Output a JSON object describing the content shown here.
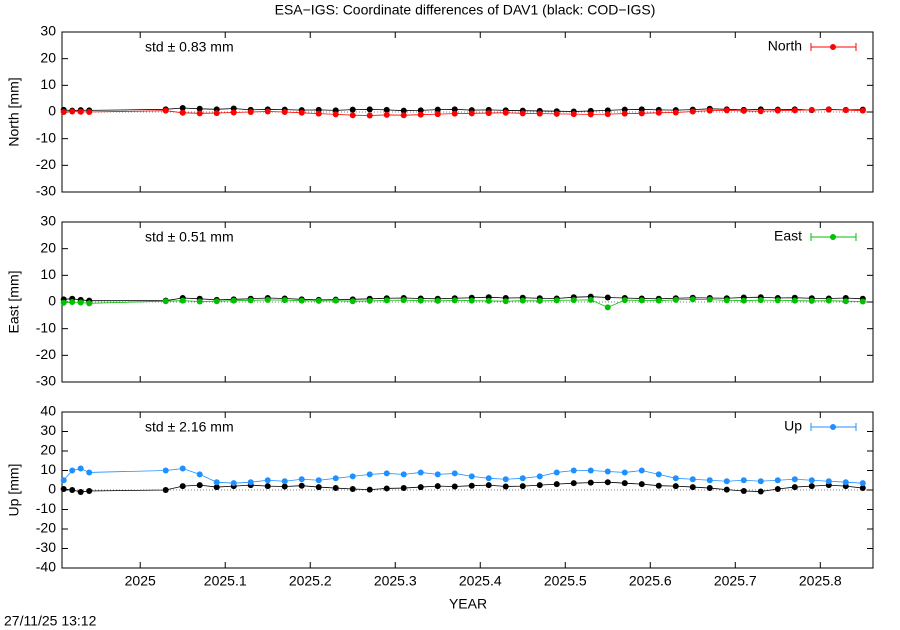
{
  "title": "ESA−IGS: Coordinate differences of DAV1 (black: COD−IGS)",
  "timestamp": "27/11/25 13:12",
  "xlabel": "YEAR",
  "chart_data": [
    {
      "type": "line",
      "ylabel": "North [mm]",
      "annotation": "std ± 0.83 mm",
      "xlim": [
        2024.908,
        2025.862
      ],
      "xticks": [
        2025,
        2025.1,
        2025.2,
        2025.3,
        2025.4,
        2025.5,
        2025.6,
        2025.7,
        2025.8
      ],
      "ylim": [
        -30,
        30
      ],
      "yticks": [
        -30,
        -20,
        -10,
        0,
        10,
        20,
        30
      ],
      "x": [
        2024.91,
        2024.92,
        2024.93,
        2024.94,
        2025.03,
        2025.05,
        2025.07,
        2025.09,
        2025.11,
        2025.13,
        2025.15,
        2025.17,
        2025.19,
        2025.21,
        2025.23,
        2025.25,
        2025.27,
        2025.29,
        2025.31,
        2025.33,
        2025.35,
        2025.37,
        2025.39,
        2025.41,
        2025.43,
        2025.45,
        2025.47,
        2025.49,
        2025.51,
        2025.53,
        2025.55,
        2025.57,
        2025.59,
        2025.61,
        2025.63,
        2025.65,
        2025.67,
        2025.69,
        2025.71,
        2025.73,
        2025.75,
        2025.77,
        2025.79,
        2025.81,
        2025.83,
        2025.85
      ],
      "series": [
        {
          "color": "#000000",
          "values": [
            0.8,
            0.5,
            0.7,
            0.6,
            1,
            1.5,
            1.2,
            1,
            1.3,
            0.8,
            1,
            0.9,
            0.7,
            0.8,
            0.6,
            0.9,
            1,
            0.8,
            0.5,
            0.6,
            0.9,
            1,
            0.7,
            0.8,
            0.6,
            0.5,
            0.4,
            0.3,
            0.2,
            0.4,
            0.6,
            0.9,
            1,
            0.8,
            0.7,
            0.9,
            1.2,
            1,
            0.8,
            1,
            0.9,
            1,
            0.7,
            1,
            0.8,
            0.9
          ]
        },
        {
          "name": "North",
          "color": "#ff0000",
          "values": [
            0,
            0.2,
            0.1,
            0,
            0.5,
            -0.3,
            -0.5,
            -0.4,
            -0.2,
            0,
            0.2,
            0,
            -0.3,
            -0.6,
            -0.9,
            -1.2,
            -1.3,
            -1.1,
            -1.2,
            -1,
            -0.8,
            -0.6,
            -0.5,
            -0.4,
            -0.3,
            -0.5,
            -0.6,
            -0.7,
            -0.8,
            -0.9,
            -0.8,
            -0.6,
            -0.5,
            -0.3,
            -0.2,
            0.2,
            0.5,
            0.6,
            0.4,
            0.3,
            0.5,
            0.6,
            0.8,
            0.9,
            0.7,
            0.5
          ]
        }
      ]
    },
    {
      "type": "line",
      "ylabel": "East [mm]",
      "annotation": "std ± 0.51 mm",
      "xlim": [
        2024.908,
        2025.862
      ],
      "xticks": [
        2025,
        2025.1,
        2025.2,
        2025.3,
        2025.4,
        2025.5,
        2025.6,
        2025.7,
        2025.8
      ],
      "ylim": [
        -30,
        30
      ],
      "yticks": [
        -30,
        -20,
        -10,
        0,
        10,
        20,
        30
      ],
      "x": [
        2024.91,
        2024.92,
        2024.93,
        2024.94,
        2025.03,
        2025.05,
        2025.07,
        2025.09,
        2025.11,
        2025.13,
        2025.15,
        2025.17,
        2025.19,
        2025.21,
        2025.23,
        2025.25,
        2025.27,
        2025.29,
        2025.31,
        2025.33,
        2025.35,
        2025.37,
        2025.39,
        2025.41,
        2025.43,
        2025.45,
        2025.47,
        2025.49,
        2025.51,
        2025.53,
        2025.55,
        2025.57,
        2025.59,
        2025.61,
        2025.63,
        2025.65,
        2025.67,
        2025.69,
        2025.71,
        2025.73,
        2025.75,
        2025.77,
        2025.79,
        2025.81,
        2025.83,
        2025.85
      ],
      "series": [
        {
          "color": "#000000",
          "values": [
            1,
            1.2,
            0.8,
            0.5,
            0.5,
            1.5,
            1.2,
            0.8,
            1,
            1.2,
            1.5,
            1.3,
            1,
            0.8,
            0.9,
            1,
            1.2,
            1.4,
            1.5,
            1.3,
            1.2,
            1.4,
            1.6,
            1.8,
            1.5,
            1.6,
            1.4,
            1.3,
            1.8,
            2,
            1.7,
            1.5,
            1.3,
            1.2,
            1.4,
            1.6,
            1.5,
            1.4,
            1.7,
            1.8,
            1.5,
            1.6,
            1.4,
            1.3,
            1.5,
            1.2
          ]
        },
        {
          "name": "East",
          "color": "#00c000",
          "values": [
            -0.3,
            0,
            -0.2,
            -0.5,
            0.3,
            0.5,
            0.2,
            0.3,
            0.5,
            0.6,
            0.8,
            0.7,
            0.5,
            0.4,
            0.5,
            0.3,
            0.4,
            0.6,
            0.7,
            0.5,
            0.4,
            0.6,
            0.5,
            0.4,
            0.3,
            0.5,
            0.4,
            0.6,
            0.7,
            0.8,
            -2,
            0.7,
            0.6,
            0.5,
            0.8,
            1,
            0.9,
            0.6,
            0.5,
            0.7,
            0.6,
            0.5,
            0.4,
            0.5,
            0.3,
            0.2
          ]
        }
      ]
    },
    {
      "type": "line",
      "ylabel": "Up [mm]",
      "annotation": "std ± 2.16 mm",
      "xlim": [
        2024.908,
        2025.862
      ],
      "xticks": [
        2025,
        2025.1,
        2025.2,
        2025.3,
        2025.4,
        2025.5,
        2025.6,
        2025.7,
        2025.8
      ],
      "ylim": [
        -40,
        40
      ],
      "yticks": [
        -40,
        -30,
        -20,
        -10,
        0,
        10,
        20,
        30,
        40
      ],
      "x": [
        2024.91,
        2024.92,
        2024.93,
        2024.94,
        2025.03,
        2025.05,
        2025.07,
        2025.09,
        2025.11,
        2025.13,
        2025.15,
        2025.17,
        2025.19,
        2025.21,
        2025.23,
        2025.25,
        2025.27,
        2025.29,
        2025.31,
        2025.33,
        2025.35,
        2025.37,
        2025.39,
        2025.41,
        2025.43,
        2025.45,
        2025.47,
        2025.49,
        2025.51,
        2025.53,
        2025.55,
        2025.57,
        2025.59,
        2025.61,
        2025.63,
        2025.65,
        2025.67,
        2025.69,
        2025.71,
        2025.73,
        2025.75,
        2025.77,
        2025.79,
        2025.81,
        2025.83,
        2025.85
      ],
      "series": [
        {
          "color": "#000000",
          "values": [
            0.5,
            0,
            -1,
            -0.5,
            0,
            2,
            2.5,
            1.5,
            2,
            2.5,
            2,
            1.8,
            2.2,
            1.5,
            1,
            0.5,
            0.2,
            0.8,
            1,
            1.5,
            2,
            1.8,
            2.2,
            2.5,
            1.8,
            2,
            2.5,
            3,
            3.5,
            3.8,
            4,
            3.5,
            3,
            2.2,
            2,
            1.5,
            1,
            0.2,
            -0.5,
            -0.8,
            0.5,
            1.5,
            2,
            2.5,
            2,
            1
          ]
        },
        {
          "name": "Up",
          "color": "#1e90ff",
          "values": [
            5,
            10,
            11,
            9,
            10,
            11,
            8,
            4,
            3.5,
            4,
            5,
            4.5,
            5.5,
            5,
            6,
            7,
            8,
            8.5,
            8,
            9,
            8,
            8.5,
            7,
            6,
            5.5,
            6,
            7,
            9,
            10,
            10,
            9.5,
            9,
            10,
            8,
            6,
            5.5,
            5,
            4.5,
            5,
            4.5,
            5,
            5.5,
            5,
            4.5,
            4,
            3.5
          ]
        }
      ]
    }
  ]
}
